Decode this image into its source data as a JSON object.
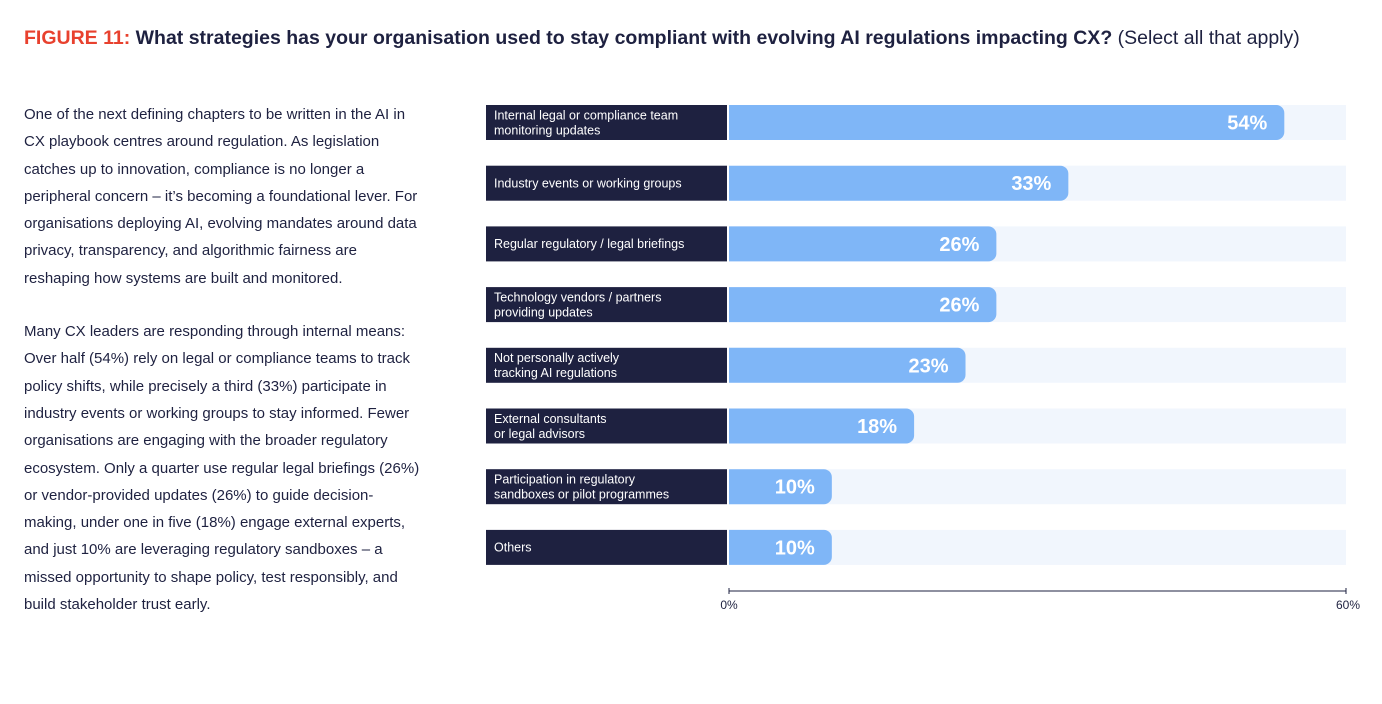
{
  "header": {
    "figure_label": "FIGURE 11:",
    "question": "What strategies has your organisation used to stay compliant with evolving AI regulations impacting CX?",
    "note": "(Select all that apply)"
  },
  "body": {
    "paragraphs": [
      "One of the next defining chapters to be written in the AI in CX playbook centres around regulation. As legislation catches up to innovation, compliance is no longer a peripheral concern – it’s becoming a foundational lever. For organisations deploying AI, evolving mandates around data privacy, transparency, and algorithmic fairness are reshaping how systems are built and monitored.",
      "Many CX leaders are responding through internal means: Over half (54%) rely on legal or compliance teams to track policy shifts, while precisely a third (33%) participate in industry events or working groups to stay informed. Fewer organisations are engaging with the broader regulatory ecosystem. Only a quarter use regular legal briefings (26%) or vendor-provided updates (26%) to guide decision-making, under one in five (18%) engage external experts, and just 10% are leveraging regulatory sandboxes – a missed opportunity to shape policy, test responsibly, and build stakeholder trust early."
    ]
  },
  "colors": {
    "accent": "#e8412e",
    "navy": "#1e2140",
    "bar": "#7fb6f7",
    "track": "#f1f6fd"
  },
  "chart_data": {
    "type": "bar",
    "orientation": "horizontal",
    "categories": [
      [
        "Internal legal or compliance team",
        "monitoring updates"
      ],
      [
        "Industry events or working groups"
      ],
      [
        "Regular regulatory / legal briefings"
      ],
      [
        "Technology vendors / partners",
        "providing updates"
      ],
      [
        "Not personally actively",
        "tracking AI regulations"
      ],
      [
        "External consultants",
        "or legal advisors"
      ],
      [
        "Participation in regulatory",
        "sandboxes or pilot programmes"
      ],
      [
        "Others"
      ]
    ],
    "values": [
      54,
      33,
      26,
      26,
      23,
      18,
      10,
      10
    ],
    "value_labels": [
      "54%",
      "33%",
      "26%",
      "26%",
      "23%",
      "18%",
      "10%",
      "10%"
    ],
    "xlim": [
      0,
      60
    ],
    "x_ticks": [
      "0%",
      "60%"
    ],
    "unit": "%",
    "grid": false,
    "legend": "none"
  }
}
